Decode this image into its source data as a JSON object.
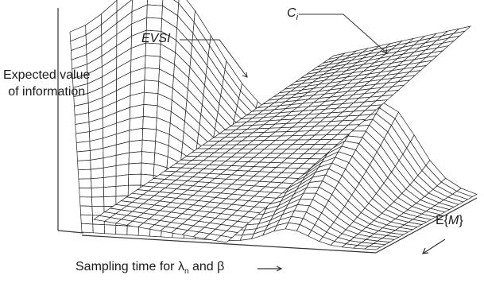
{
  "labels": {
    "y_axis_line1": "Expected value",
    "y_axis_line2": "of information",
    "evsi": "EVSI",
    "ci_main": "C",
    "ci_sub": "i",
    "em_prefix": "E{",
    "em_var": "M",
    "em_suffix": "}",
    "x_axis": "Sampling time for λ",
    "x_axis_sub": "n",
    "x_axis_tail": " and β"
  },
  "colors": {
    "background": "#ffffff",
    "mesh_line": "#222222",
    "surface_fill": "#ffffff",
    "axis_line": "#333333",
    "text": "#1a1a1a"
  }
}
